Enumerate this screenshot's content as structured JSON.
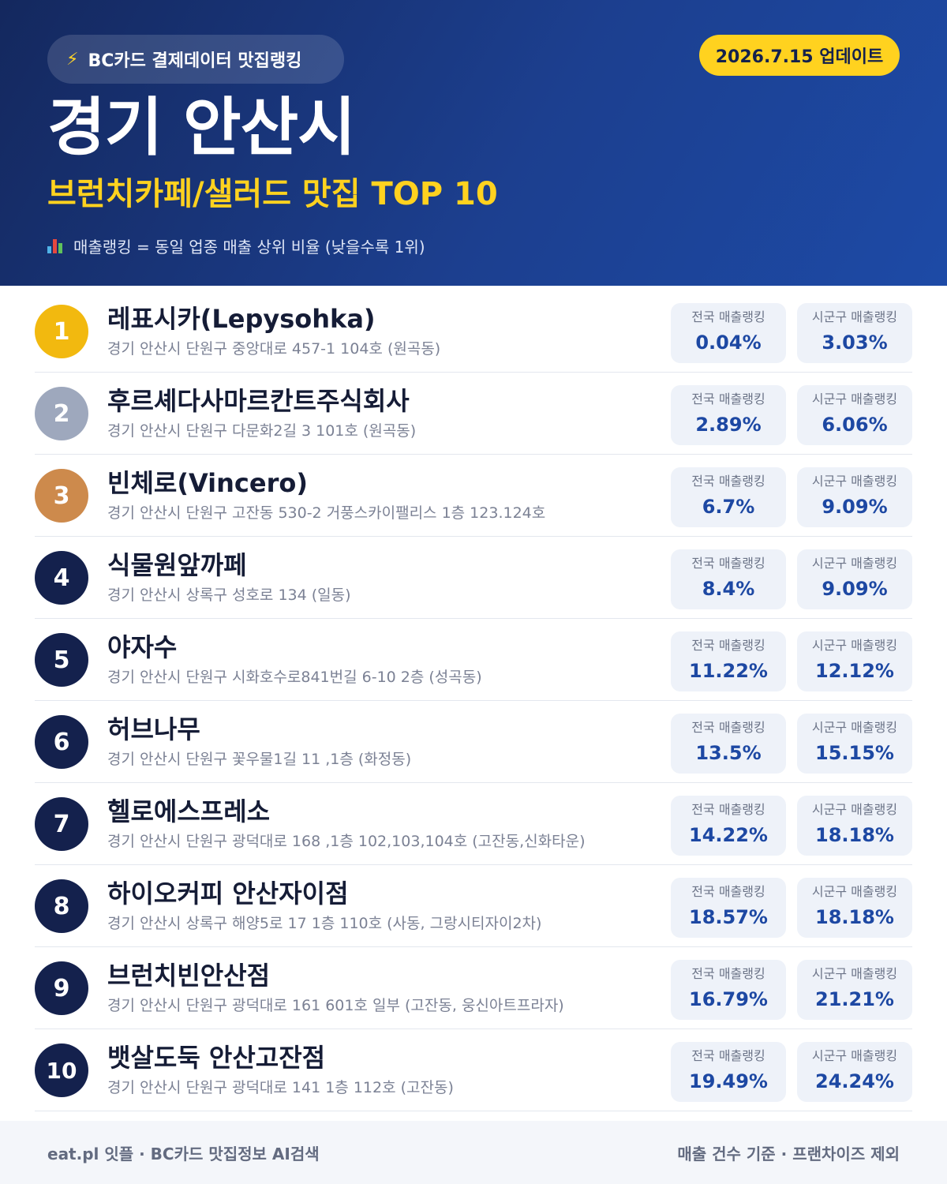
{
  "header": {
    "badge_icon": "lightning-icon",
    "badge_text": "BC카드 결제데이터 맛집랭킹",
    "update_text": "2026.7.15 업데이트",
    "city": "경기 안산시",
    "subtitle": "브런치카페/샐러드 맛집 TOP 10",
    "note_icon": "bar-chart-icon",
    "note": "매출랭킹 = 동일 업종 매출 상위 비율 (낮을수록 1위)"
  },
  "colors": {
    "gold": "#f2b90f",
    "silver": "#9ea8bd",
    "bronze": "#cd8a4c",
    "navy": "#14214d",
    "accent_yellow": "#ffd21f",
    "value_blue": "#1d48a3"
  },
  "labels": {
    "national": "전국 매출랭킹",
    "local": "시군구 매출랭킹"
  },
  "restaurants": [
    {
      "rank": "1",
      "name": "레표시카(Lepysohka)",
      "address": "경기 안산시 단원구 중앙대로 457-1 104호 (원곡동)",
      "national": "0.04%",
      "local": "3.03%"
    },
    {
      "rank": "2",
      "name": "후르셰다사마르칸트주식회사",
      "address": "경기 안산시 단원구 다문화2길 3 101호 (원곡동)",
      "national": "2.89%",
      "local": "6.06%"
    },
    {
      "rank": "3",
      "name": "빈체로(Vincero)",
      "address": "경기 안산시 단원구 고잔동 530-2 거풍스카이팰리스 1층 123.124호",
      "national": "6.7%",
      "local": "9.09%"
    },
    {
      "rank": "4",
      "name": "식물원앞까페",
      "address": "경기 안산시 상록구 성호로 134 (일동)",
      "national": "8.4%",
      "local": "9.09%"
    },
    {
      "rank": "5",
      "name": "야자수",
      "address": "경기 안산시 단원구 시화호수로841번길 6-10 2층 (성곡동)",
      "national": "11.22%",
      "local": "12.12%"
    },
    {
      "rank": "6",
      "name": "허브나무",
      "address": "경기 안산시 단원구 꽃우물1길 11 ,1층 (화정동)",
      "national": "13.5%",
      "local": "15.15%"
    },
    {
      "rank": "7",
      "name": "헬로에스프레소",
      "address": "경기 안산시 단원구 광덕대로 168 ,1층 102,103,104호 (고잔동,신화타운)",
      "national": "14.22%",
      "local": "18.18%"
    },
    {
      "rank": "8",
      "name": "하이오커피 안산자이점",
      "address": "경기 안산시 상록구 해양5로 17 1층 110호 (사동, 그랑시티자이2차)",
      "national": "18.57%",
      "local": "18.18%"
    },
    {
      "rank": "9",
      "name": "브런치빈안산점",
      "address": "경기 안산시 단원구 광덕대로 161 601호 일부 (고잔동, 웅신아트프라자)",
      "national": "16.79%",
      "local": "21.21%"
    },
    {
      "rank": "10",
      "name": "뱃살도둑 안산고잔점",
      "address": "경기 안산시 단원구 광덕대로 141 1층 112호 (고잔동)",
      "national": "19.49%",
      "local": "24.24%"
    }
  ],
  "footer": {
    "left": "eat.pl 잇플 · BC카드 맛집정보 AI검색",
    "right": "매출 건수 기준 · 프랜차이즈 제외"
  }
}
